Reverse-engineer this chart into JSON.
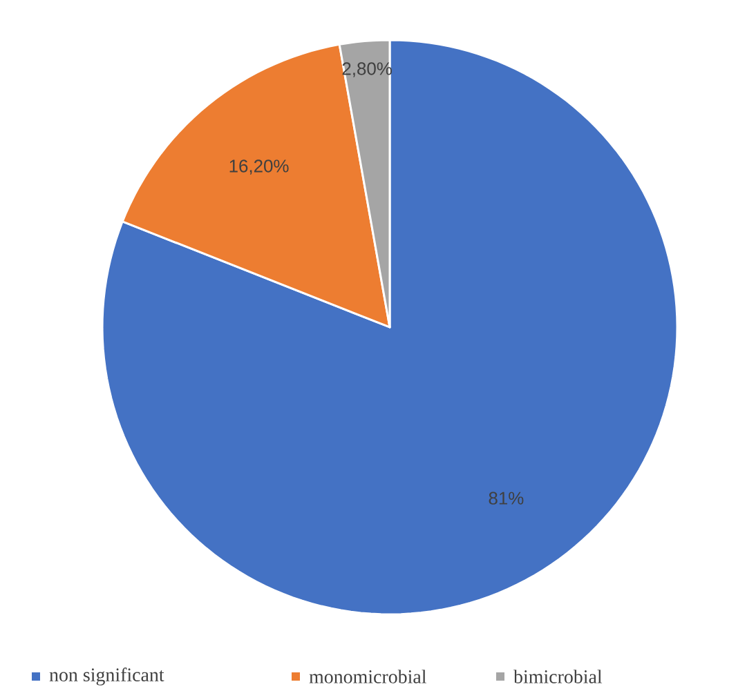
{
  "chart_data": {
    "type": "pie",
    "categories": [
      "non significant",
      "monomicrobial",
      "bimicrobial"
    ],
    "values": [
      81,
      16.2,
      2.8
    ],
    "colors": [
      "#4472c4",
      "#ed7d31",
      "#a5a5a5"
    ],
    "value_labels": [
      "81%",
      "16,20%",
      "2,80%"
    ],
    "legend": "bottom"
  }
}
